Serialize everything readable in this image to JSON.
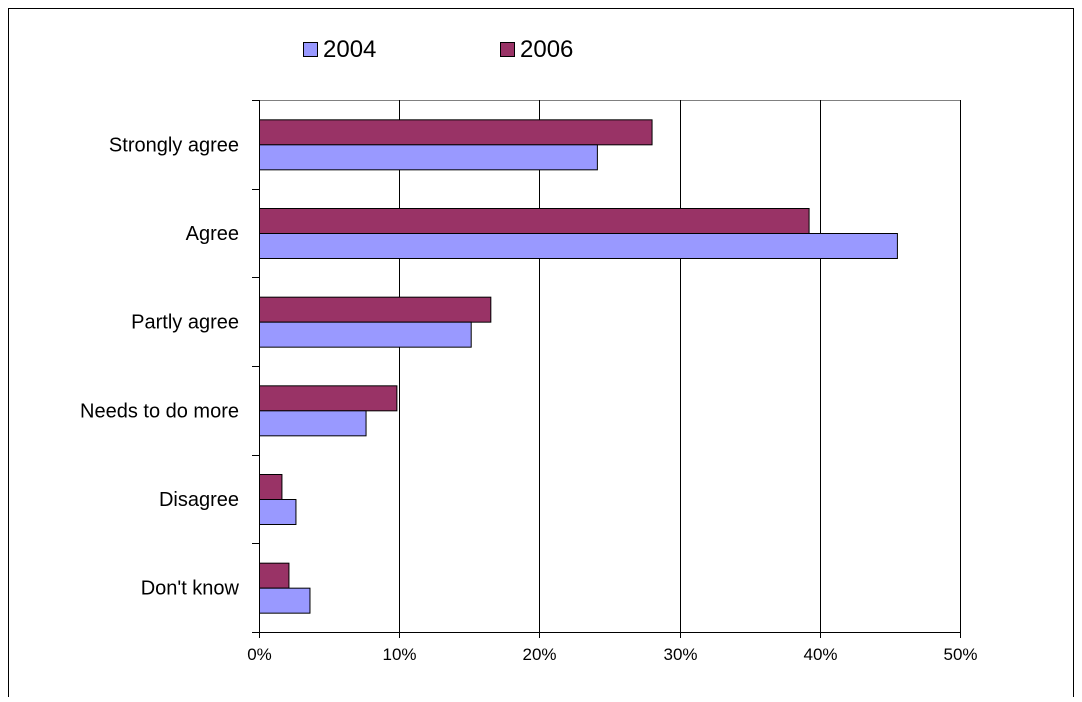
{
  "chart_data": {
    "type": "bar",
    "orientation": "horizontal",
    "title": "",
    "xlabel": "",
    "ylabel": "",
    "categories": [
      "Strongly agree",
      "Agree",
      "Partly agree",
      "Needs to do more",
      "Disagree",
      "Don't know"
    ],
    "series": [
      {
        "name": "2004",
        "color": "#9999ff",
        "values": [
          24.1,
          45.5,
          15.1,
          7.6,
          2.6,
          3.6
        ]
      },
      {
        "name": "2006",
        "color": "#993366",
        "values": [
          28.0,
          39.2,
          16.5,
          9.8,
          1.6,
          2.1
        ]
      }
    ],
    "xlim": [
      0,
      50
    ],
    "xticks": [
      0,
      10,
      20,
      30,
      40,
      50
    ],
    "tick_labels": [
      "0%",
      "10%",
      "20%",
      "30%",
      "40%",
      "50%"
    ],
    "grid": true,
    "legend_position": "top"
  }
}
